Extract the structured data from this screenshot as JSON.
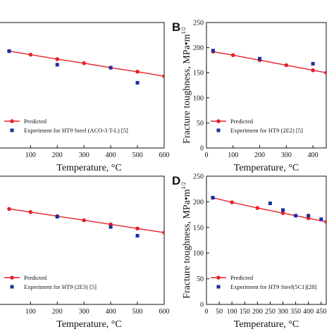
{
  "colors": {
    "predicted": "#e8202a",
    "experiment": "#1b2f9c",
    "axis": "#111111"
  },
  "chart_data": [
    {
      "panel": "",
      "type": "line",
      "xlabel": "Temperature, °C",
      "ylabel": "",
      "xlim": [
        -30,
        600
      ],
      "ylim": [
        0,
        250
      ],
      "xticks": [
        100,
        200,
        300,
        400,
        500,
        600
      ],
      "yticks": [],
      "series": [
        {
          "name": "Predicted",
          "kind": "line",
          "x": [
            20,
            100,
            200,
            300,
            400,
            500,
            600
          ],
          "y": [
            193,
            186,
            177,
            169,
            160,
            152,
            143
          ]
        },
        {
          "name": "Experiment for HT9 Steel (ACO-3 T-L) [5]",
          "kind": "scatter",
          "x": [
            20,
            200,
            400,
            500
          ],
          "y": [
            193,
            166,
            160,
            130
          ]
        }
      ],
      "legend_loc": "lower-left"
    },
    {
      "panel": "B",
      "type": "line",
      "xlabel": "Temperature, °C",
      "ylabel": "Fracture toughness, MPa•m^1/2",
      "xlim": [
        0,
        450
      ],
      "ylim": [
        0,
        250
      ],
      "xticks": [
        0,
        100,
        200,
        300,
        400
      ],
      "yticks": [
        0,
        50,
        100,
        150,
        200,
        250
      ],
      "series": [
        {
          "name": "Predicted",
          "kind": "line",
          "x": [
            25,
            100,
            200,
            300,
            400,
            450
          ],
          "y": [
            192,
            185,
            175,
            165,
            155,
            150
          ]
        },
        {
          "name": "Experiment for HT9 (2E2) [5]",
          "kind": "scatter",
          "x": [
            25,
            200,
            400
          ],
          "y": [
            194,
            178,
            168
          ]
        }
      ],
      "legend_loc": "lower-left"
    },
    {
      "panel": "",
      "type": "line",
      "xlabel": "Temperature, °C",
      "ylabel": "",
      "xlim": [
        -30,
        600
      ],
      "ylim": [
        0,
        250
      ],
      "xticks": [
        100,
        200,
        300,
        400,
        500,
        600
      ],
      "yticks": [],
      "series": [
        {
          "name": "Predicted",
          "kind": "line",
          "x": [
            20,
            100,
            200,
            300,
            400,
            500,
            600
          ],
          "y": [
            186,
            180,
            172,
            164,
            156,
            148,
            140
          ]
        },
        {
          "name": "Experiment for HT9 (2E3) [5]",
          "kind": "scatter",
          "x": [
            200,
            400,
            500
          ],
          "y": [
            171,
            151,
            134
          ]
        }
      ],
      "legend_loc": "lower-left"
    },
    {
      "panel": "D",
      "type": "line",
      "xlabel": "Temperature, °C",
      "ylabel": "Fracture toughness, MPa•m^1/2",
      "xlim": [
        0,
        470
      ],
      "ylim": [
        0,
        250
      ],
      "xticks": [
        0,
        50,
        100,
        150,
        200,
        250,
        300,
        350,
        400,
        450
      ],
      "yticks": [
        0,
        50,
        100,
        150,
        200,
        250
      ],
      "series": [
        {
          "name": "Predicted",
          "kind": "line",
          "x": [
            25,
            100,
            200,
            300,
            400,
            470
          ],
          "y": [
            208,
            199,
            188,
            178,
            168,
            161
          ]
        },
        {
          "name": "Experiment for HT9 Steel(5C1)[28]",
          "kind": "scatter",
          "x": [
            25,
            250,
            300,
            350,
            400,
            450
          ],
          "y": [
            208,
            197,
            184,
            173,
            173,
            166
          ]
        }
      ],
      "legend_loc": "lower-left"
    }
  ]
}
